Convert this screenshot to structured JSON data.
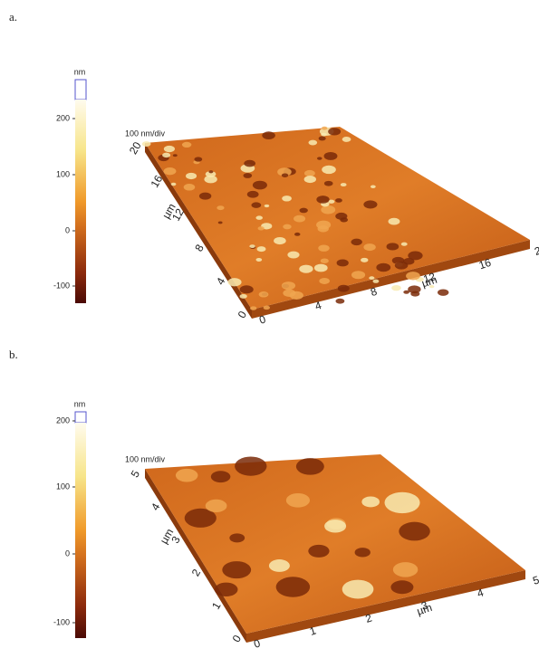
{
  "panels": [
    {
      "label": "a.",
      "colorbar": {
        "unit": "nm",
        "ticks": [
          "200",
          "100",
          "0",
          "-100"
        ]
      },
      "scale": "100 nm/div",
      "x_axis": {
        "unit": "µm",
        "ticks": [
          "0",
          "4",
          "8",
          "12",
          "16",
          "20"
        ]
      },
      "y_axis": {
        "unit": "µm",
        "ticks": [
          "0",
          "4",
          "8",
          "12",
          "16",
          "20"
        ]
      }
    },
    {
      "label": "b.",
      "colorbar": {
        "unit": "nm",
        "ticks": [
          "200",
          "100",
          "0",
          "-100"
        ]
      },
      "scale": "100 nm/div",
      "x_axis": {
        "unit": "µm",
        "ticks": [
          "0",
          "1",
          "2",
          "3",
          "4",
          "5"
        ]
      },
      "y_axis": {
        "unit": "µm",
        "ticks": [
          "0",
          "1",
          "2",
          "3",
          "4",
          "5"
        ]
      }
    }
  ]
}
